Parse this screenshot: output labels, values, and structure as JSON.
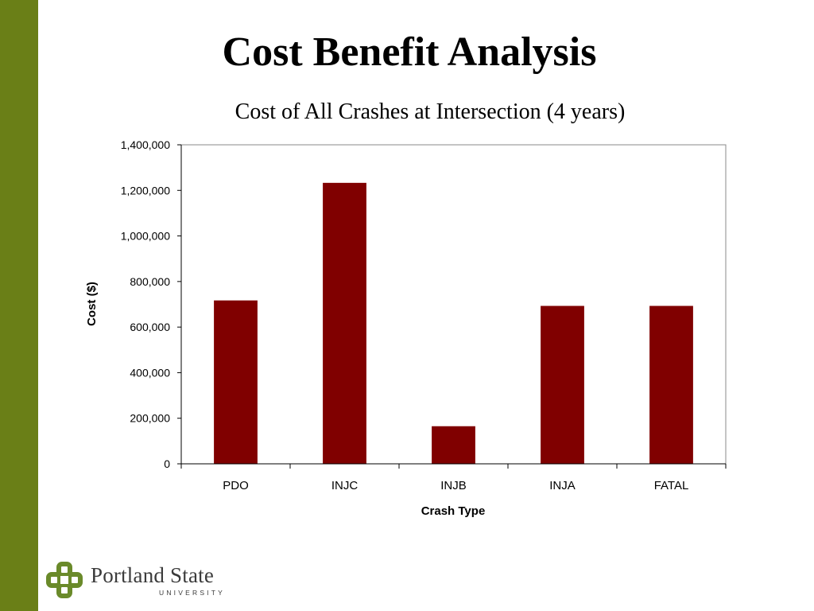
{
  "slide": {
    "title": "Cost Benefit Analysis"
  },
  "colors": {
    "sidebar": "#6a7f17",
    "bar": "#800000",
    "logo_mark": "#6a8a2a",
    "text": "#000000"
  },
  "logo": {
    "icon": "portland-state-knot-icon",
    "name": "Portland State",
    "subtitle": "UNIVERSITY"
  },
  "chart_data": {
    "type": "bar",
    "title": "Cost of  All Crashes at Intersection (4 years)",
    "xlabel": "Crash Type",
    "ylabel": "Cost ($)",
    "categories": [
      "PDO",
      "INJC",
      "INJB",
      "INJA",
      "FATAL"
    ],
    "values": [
      717000,
      1233000,
      165000,
      693000,
      693000
    ],
    "ylim": [
      0,
      1400000
    ],
    "yticks": [
      0,
      200000,
      400000,
      600000,
      800000,
      1000000,
      1200000,
      1400000
    ],
    "ytick_labels": [
      "0",
      "200,000",
      "400,000",
      "600,000",
      "800,000",
      "1,000,000",
      "1,200,000",
      "1,400,000"
    ],
    "grid": false,
    "legend": "none"
  }
}
